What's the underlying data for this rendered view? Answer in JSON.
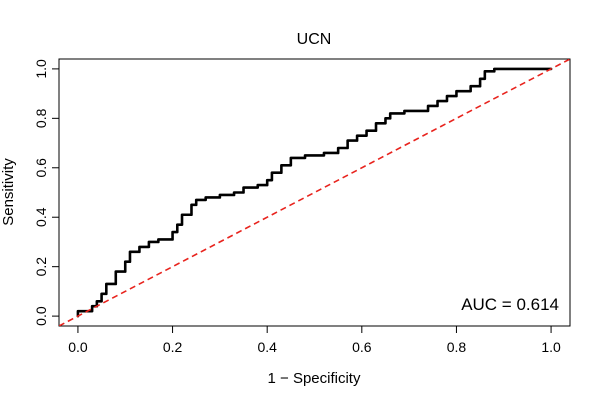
{
  "chart_data": {
    "type": "line",
    "title": "UCN",
    "xlabel": "1 − Specificity",
    "ylabel": "Sensitivity",
    "xlim": [
      -0.04,
      1.04
    ],
    "ylim": [
      -0.04,
      1.04
    ],
    "x_ticks": [
      {
        "value": 0,
        "label": "0.0"
      },
      {
        "value": 0.2,
        "label": "0.2"
      },
      {
        "value": 0.4,
        "label": "0.4"
      },
      {
        "value": 0.6,
        "label": "0.6"
      },
      {
        "value": 0.8,
        "label": "0.8"
      },
      {
        "value": 1.0,
        "label": "1.0"
      }
    ],
    "y_ticks": [
      {
        "value": 0,
        "label": "0.0"
      },
      {
        "value": 0.2,
        "label": "0.2"
      },
      {
        "value": 0.4,
        "label": "0.4"
      },
      {
        "value": 0.6,
        "label": "0.6"
      },
      {
        "value": 0.8,
        "label": "0.8"
      },
      {
        "value": 1.0,
        "label": "1.0"
      }
    ],
    "grid": false,
    "annotation": "AUC = 0.614",
    "series": [
      {
        "style": "solid",
        "color": "#000000",
        "x": [
          0.0,
          0.03,
          0.04,
          0.05,
          0.06,
          0.08,
          0.1,
          0.11,
          0.13,
          0.15,
          0.17,
          0.2,
          0.21,
          0.22,
          0.24,
          0.25,
          0.27,
          0.3,
          0.33,
          0.35,
          0.38,
          0.4,
          0.41,
          0.43,
          0.45,
          0.48,
          0.5,
          0.52,
          0.55,
          0.57,
          0.59,
          0.61,
          0.63,
          0.65,
          0.66,
          0.69,
          0.71,
          0.74,
          0.76,
          0.78,
          0.8,
          0.83,
          0.85,
          0.86,
          0.88,
          1.0
        ],
        "y": [
          0.0,
          0.02,
          0.04,
          0.06,
          0.09,
          0.13,
          0.18,
          0.22,
          0.26,
          0.28,
          0.3,
          0.31,
          0.34,
          0.37,
          0.41,
          0.45,
          0.47,
          0.48,
          0.49,
          0.5,
          0.52,
          0.53,
          0.55,
          0.58,
          0.61,
          0.64,
          0.65,
          0.65,
          0.66,
          0.68,
          0.71,
          0.73,
          0.75,
          0.78,
          0.8,
          0.82,
          0.83,
          0.83,
          0.85,
          0.87,
          0.89,
          0.91,
          0.93,
          0.96,
          0.99,
          1.0
        ]
      },
      {
        "style": "dashed",
        "color": "#e8231d",
        "x": [
          -0.04,
          1.04
        ],
        "y": [
          -0.04,
          1.04
        ]
      }
    ]
  }
}
